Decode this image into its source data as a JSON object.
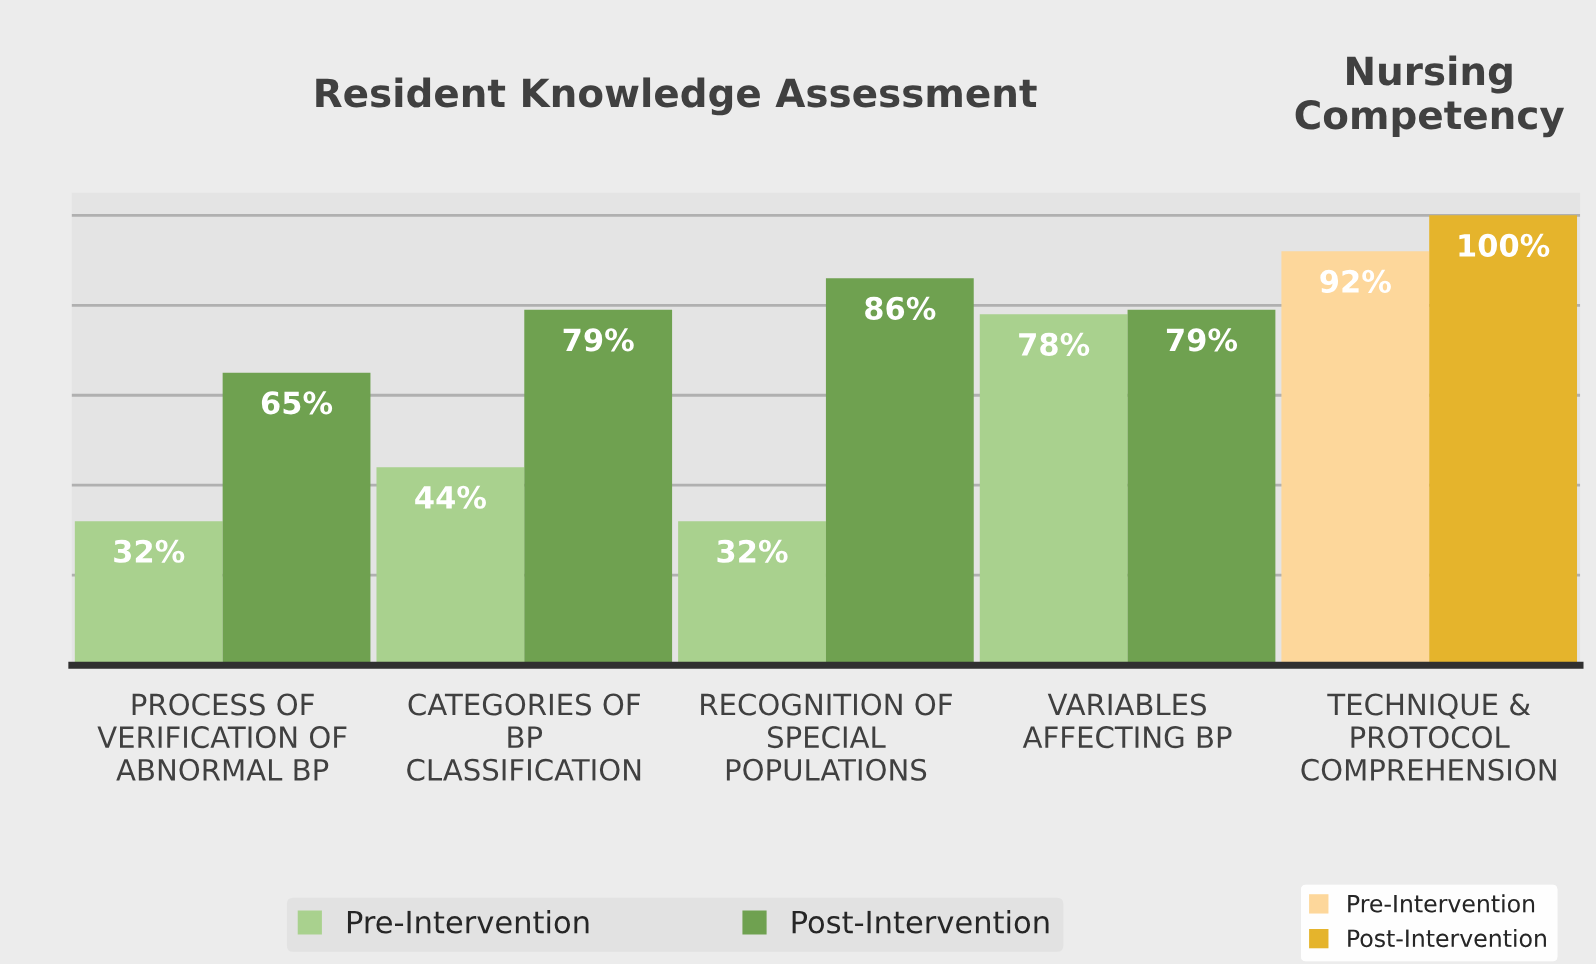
{
  "chart_data": {
    "type": "bar",
    "title": "Resident Knowledge Assessment",
    "annotations": [
      "Nursing\nCompetency"
    ],
    "categories": [
      "PROCESS OF\nVERIFICATION OF\nABNORMAL BP",
      "CATEGORIES OF\nBP\nCLASSIFICATION",
      "RECOGNITION OF\nSPECIAL\nPOPULATIONS",
      "VARIABLES\nAFFECTING BP",
      "TECHNIQUE &\nPROTOCOL\nCOMPREHENSION"
    ],
    "series": [
      {
        "name": "Pre-Intervention",
        "color": "#a9d18e",
        "values": [
          32,
          44,
          32,
          78,
          null
        ],
        "value_labels": [
          "32%",
          "44%",
          "32%",
          "78%",
          null
        ]
      },
      {
        "name": "Post-Intervention",
        "color": "#6fa150",
        "values": [
          65,
          79,
          86,
          79,
          null
        ],
        "value_labels": [
          "65%",
          "79%",
          "86%",
          "79%",
          null
        ]
      },
      {
        "name": "Pre-Intervention",
        "color": "#fdd79b",
        "values": [
          null,
          null,
          null,
          null,
          92
        ],
        "value_labels": [
          null,
          null,
          null,
          null,
          "92%"
        ]
      },
      {
        "name": "Post-Intervention",
        "color": "#e5b42c",
        "values": [
          null,
          null,
          null,
          null,
          100
        ],
        "value_labels": [
          null,
          null,
          null,
          null,
          "100%"
        ]
      }
    ],
    "grid": "y",
    "legend": "bottom",
    "tick_labels": "x"
  }
}
